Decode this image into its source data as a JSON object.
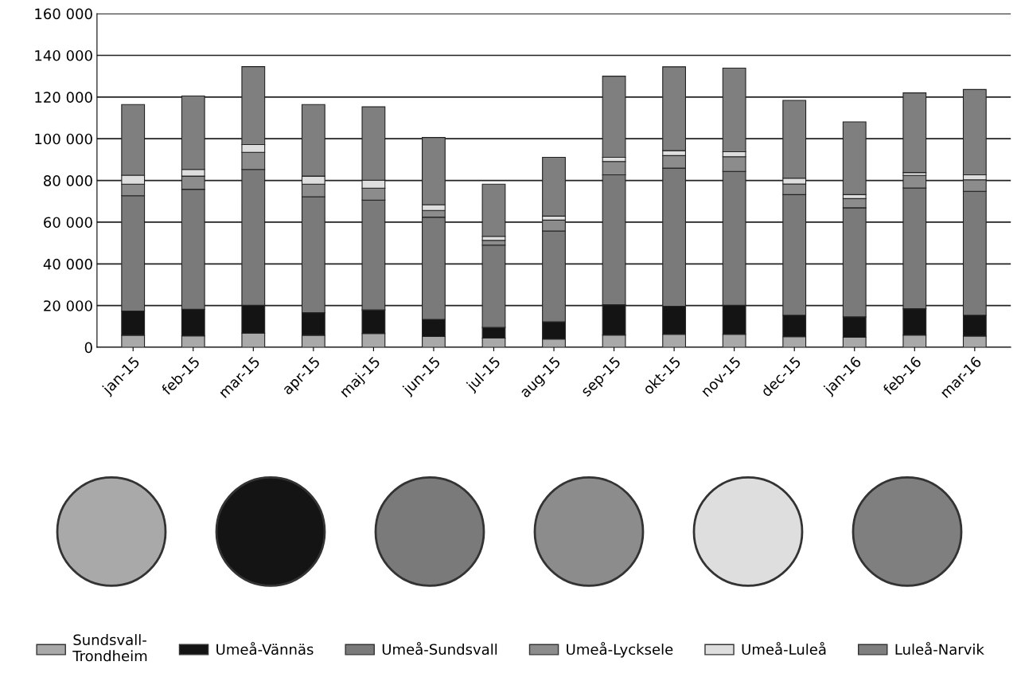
{
  "chart_data": {
    "type": "bar",
    "stacked": true,
    "grid": "y",
    "legend": "bottom",
    "categories": [
      "jan-15",
      "feb-15",
      "mar-15",
      "apr-15",
      "maj-15",
      "jun-15",
      "jul-15",
      "aug-15",
      "sep-15",
      "okt-15",
      "nov-15",
      "dec-15",
      "jan-16",
      "feb-16",
      "mar-16"
    ],
    "series": [
      {
        "name": "Sundsvall-\nTrondheim",
        "color": "#a9a9a9",
        "values": [
          5800,
          5500,
          6800,
          5800,
          6600,
          5200,
          4400,
          4000,
          5900,
          6200,
          6200,
          5100,
          4800,
          5900,
          5400
        ]
      },
      {
        "name": "Umeå-Vännäs",
        "color": "#141414",
        "values": [
          11600,
          12700,
          13300,
          10800,
          11300,
          8200,
          5100,
          8200,
          14500,
          13500,
          13900,
          10300,
          9800,
          12600,
          10000
        ]
      },
      {
        "name": "Umeå-Sundsvall",
        "color": "#7a7a7a",
        "values": [
          55300,
          57600,
          65200,
          55600,
          52700,
          49000,
          39500,
          43600,
          62300,
          66200,
          64200,
          57800,
          52300,
          57900,
          59400
        ]
      },
      {
        "name": "Umeå-Lycksele",
        "color": "#8c8c8c",
        "values": [
          5500,
          6300,
          8200,
          6000,
          5700,
          3200,
          2300,
          5200,
          6400,
          6000,
          7100,
          5100,
          4400,
          6000,
          5500
        ]
      },
      {
        "name": "Umeå-Luleå",
        "color": "#dedede",
        "values": [
          4300,
          3200,
          3700,
          3900,
          3800,
          2800,
          1900,
          1900,
          2000,
          2400,
          2400,
          2800,
          1900,
          1400,
          2400
        ]
      },
      {
        "name": "Luleå-Narvik",
        "color": "#7f7f7f",
        "values": [
          33900,
          35200,
          37400,
          34300,
          35200,
          32200,
          25000,
          28200,
          38900,
          40200,
          40100,
          37300,
          34900,
          38200,
          40900
        ]
      }
    ],
    "ylim": [
      0,
      160000
    ],
    "yticks": [
      {
        "value": 0,
        "label": "0"
      },
      {
        "value": 20000,
        "label": "20 000"
      },
      {
        "value": 40000,
        "label": "40 000"
      },
      {
        "value": 60000,
        "label": "60 000"
      },
      {
        "value": 80000,
        "label": "80 000"
      },
      {
        "value": 100000,
        "label": "100 000"
      },
      {
        "value": 120000,
        "label": "120 000"
      },
      {
        "value": 140000,
        "label": "140 000"
      },
      {
        "value": 160000,
        "label": "160 000"
      }
    ]
  }
}
